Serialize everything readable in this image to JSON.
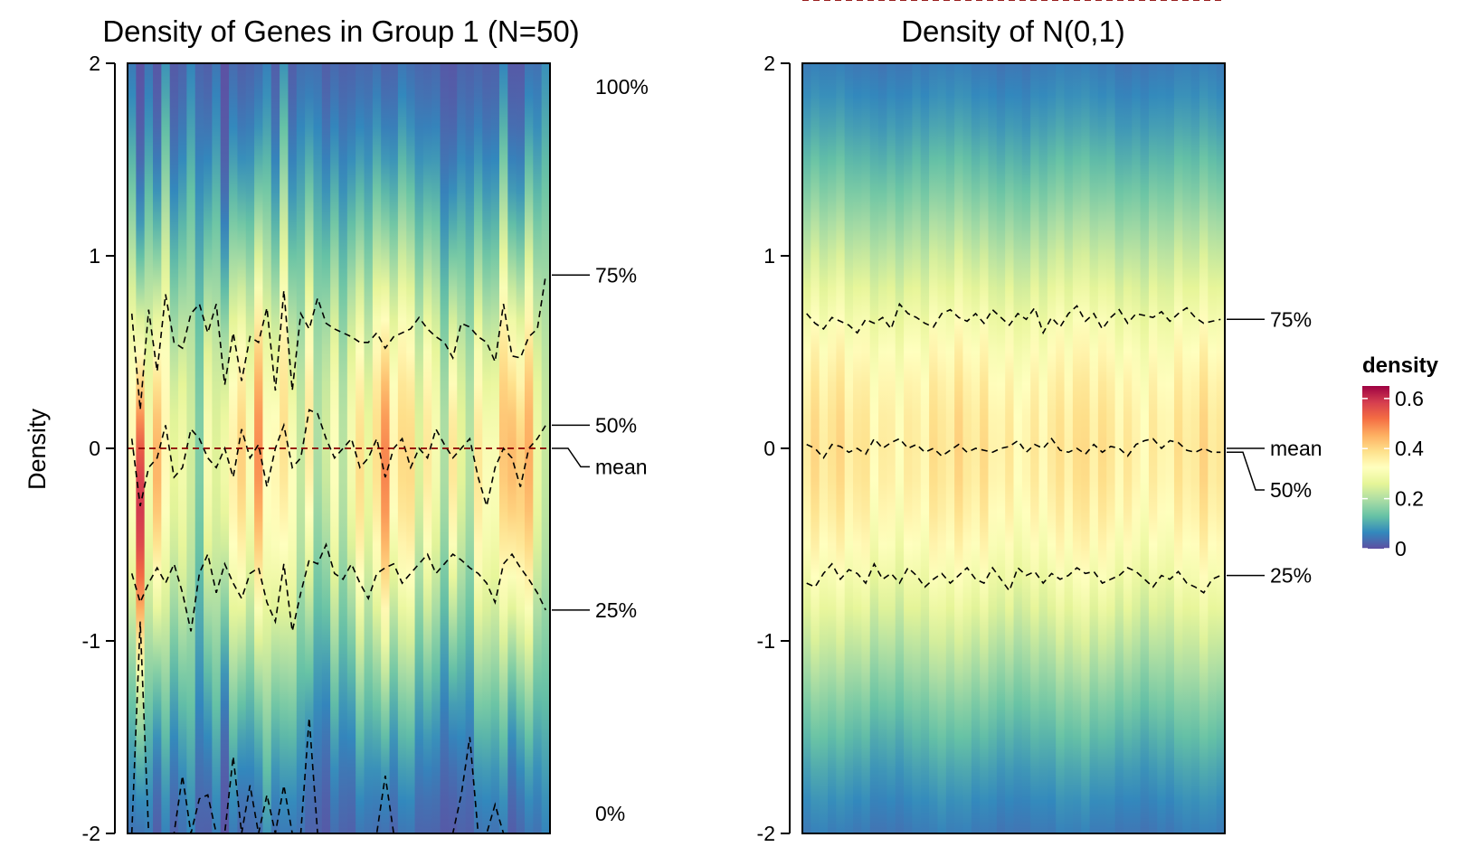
{
  "colors": {
    "palette": [
      "#5e4fa2",
      "#3288bd",
      "#66c2a5",
      "#abdda4",
      "#e6f598",
      "#ffffbf",
      "#fee08b",
      "#fdae61",
      "#f46d43",
      "#d53e4f",
      "#9e0142"
    ],
    "mean_line": "#8b0000",
    "quantile_line": "#000000"
  },
  "chart_data": [
    {
      "type": "heatmap",
      "title": "Density of Genes in Group 1 (N=50)",
      "ylabel": "Density",
      "ylim": [
        -2,
        2
      ],
      "yticks": [
        2,
        1,
        0,
        -1,
        -2
      ],
      "n_columns": 50,
      "annotations": [
        {
          "label": "100%",
          "value": 2.0
        },
        {
          "label": "75%",
          "value": 0.9
        },
        {
          "label": "50%",
          "value": 0.12
        },
        {
          "label": "mean",
          "value": 0.0
        },
        {
          "label": "25%",
          "value": -0.84
        },
        {
          "label": "0%",
          "value": -2.0
        }
      ],
      "quantiles": {
        "q75": [
          0.7,
          0.2,
          0.72,
          0.4,
          0.8,
          0.55,
          0.52,
          0.7,
          0.75,
          0.6,
          0.75,
          0.33,
          0.6,
          0.35,
          0.58,
          0.55,
          0.73,
          0.3,
          0.82,
          0.3,
          0.7,
          0.62,
          0.78,
          0.65,
          0.62,
          0.6,
          0.58,
          0.55,
          0.55,
          0.6,
          0.52,
          0.58,
          0.6,
          0.62,
          0.68,
          0.62,
          0.58,
          0.55,
          0.47,
          0.65,
          0.63,
          0.58,
          0.55,
          0.45,
          0.75,
          0.48,
          0.47,
          0.58,
          0.62,
          0.9
        ],
        "q50": [
          0.05,
          -0.3,
          -0.1,
          -0.05,
          0.12,
          -0.15,
          -0.1,
          0.1,
          0.05,
          -0.05,
          -0.1,
          0.0,
          -0.15,
          0.1,
          -0.05,
          0.02,
          -0.2,
          0.0,
          0.12,
          -0.1,
          -0.05,
          0.2,
          0.18,
          0.05,
          -0.05,
          0.0,
          0.05,
          -0.1,
          -0.05,
          0.05,
          -0.15,
          0.0,
          0.05,
          -0.1,
          0.0,
          -0.05,
          0.1,
          0.02,
          -0.05,
          0.0,
          0.05,
          -0.15,
          -0.3,
          -0.1,
          0.0,
          -0.05,
          -0.2,
          0.0,
          0.05,
          0.12
        ],
        "q25": [
          -0.65,
          -0.8,
          -0.7,
          -0.62,
          -0.7,
          -0.6,
          -0.75,
          -0.95,
          -0.65,
          -0.55,
          -0.75,
          -0.6,
          -0.7,
          -0.78,
          -0.65,
          -0.62,
          -0.8,
          -0.9,
          -0.6,
          -0.95,
          -0.75,
          -0.58,
          -0.6,
          -0.5,
          -0.65,
          -0.68,
          -0.6,
          -0.7,
          -0.78,
          -0.65,
          -0.62,
          -0.6,
          -0.7,
          -0.65,
          -0.6,
          -0.55,
          -0.65,
          -0.6,
          -0.55,
          -0.58,
          -0.62,
          -0.65,
          -0.7,
          -0.8,
          -0.6,
          -0.55,
          -0.62,
          -0.68,
          -0.75,
          -0.84
        ],
        "q0": [
          -2.0,
          -0.9,
          -2.0,
          -2.0,
          -2.0,
          -2.0,
          -1.7,
          -2.0,
          -1.82,
          -1.8,
          -2.0,
          -2.0,
          -1.6,
          -2.0,
          -1.75,
          -2.0,
          -1.8,
          -2.0,
          -1.75,
          -2.0,
          -2.0,
          -1.4,
          -2.0,
          -2.0,
          -2.0,
          -2.0,
          -2.0,
          -2.0,
          -2.0,
          -2.0,
          -1.7,
          -2.0,
          -2.0,
          -2.0,
          -2.0,
          -2.0,
          -2.0,
          -2.0,
          -2.0,
          -1.8,
          -1.5,
          -2.0,
          -2.0,
          -1.85,
          -2.0,
          -2.0,
          -2.0,
          -2.0,
          -2.0,
          -2.0
        ],
        "q100": [
          2.0,
          2.0,
          2.0,
          2.0,
          2.0,
          2.0,
          2.0,
          2.0,
          2.0,
          2.0,
          2.0,
          2.0,
          2.0,
          2.0,
          2.0,
          2.0,
          2.0,
          2.0,
          2.0,
          2.0,
          2.0,
          2.0,
          2.0,
          2.0,
          2.0,
          2.0,
          2.0,
          2.0,
          2.0,
          2.0,
          2.0,
          2.0,
          2.0,
          2.0,
          2.0,
          2.0,
          2.0,
          2.0,
          2.0,
          2.0,
          2.0,
          2.0,
          2.0,
          2.0,
          2.0,
          2.0,
          2.0,
          2.0,
          2.0,
          2.0
        ],
        "mean": 0.0
      }
    },
    {
      "type": "heatmap",
      "title": "Density of N(0,1)",
      "ylim": [
        -2,
        2
      ],
      "yticks": [
        2,
        1,
        0,
        -1,
        -2
      ],
      "n_columns": 50,
      "annotations": [
        {
          "label": "75%",
          "value": 0.67
        },
        {
          "label": "mean",
          "value": 0.0
        },
        {
          "label": "50%",
          "value": -0.02
        },
        {
          "label": "25%",
          "value": -0.66
        }
      ],
      "quantiles": {
        "q75": [
          0.7,
          0.65,
          0.62,
          0.68,
          0.66,
          0.64,
          0.6,
          0.67,
          0.65,
          0.68,
          0.62,
          0.75,
          0.7,
          0.68,
          0.65,
          0.63,
          0.7,
          0.72,
          0.68,
          0.66,
          0.7,
          0.65,
          0.72,
          0.68,
          0.64,
          0.7,
          0.67,
          0.73,
          0.6,
          0.68,
          0.63,
          0.7,
          0.74,
          0.66,
          0.7,
          0.62,
          0.68,
          0.72,
          0.65,
          0.7,
          0.69,
          0.68,
          0.71,
          0.66,
          0.7,
          0.73,
          0.68,
          0.65,
          0.66,
          0.67
        ],
        "q50": [
          0.02,
          0.0,
          -0.05,
          0.02,
          0.01,
          -0.02,
          0.0,
          -0.03,
          0.05,
          0.0,
          0.03,
          0.05,
          0.0,
          0.02,
          -0.02,
          0.0,
          -0.04,
          -0.01,
          0.02,
          -0.02,
          0.0,
          -0.01,
          -0.02,
          0.0,
          0.01,
          0.04,
          -0.02,
          0.02,
          0.0,
          0.05,
          -0.01,
          -0.02,
          0.0,
          -0.03,
          0.02,
          -0.02,
          0.01,
          0.0,
          -0.04,
          0.02,
          0.04,
          0.05,
          0.0,
          0.04,
          0.03,
          -0.01,
          -0.02,
          0.0,
          -0.02,
          -0.02
        ],
        "q25": [
          -0.7,
          -0.72,
          -0.65,
          -0.6,
          -0.68,
          -0.63,
          -0.65,
          -0.7,
          -0.6,
          -0.68,
          -0.65,
          -0.7,
          -0.62,
          -0.66,
          -0.72,
          -0.68,
          -0.65,
          -0.7,
          -0.66,
          -0.62,
          -0.68,
          -0.7,
          -0.62,
          -0.68,
          -0.74,
          -0.62,
          -0.66,
          -0.64,
          -0.7,
          -0.65,
          -0.68,
          -0.66,
          -0.62,
          -0.65,
          -0.64,
          -0.7,
          -0.68,
          -0.66,
          -0.62,
          -0.64,
          -0.68,
          -0.72,
          -0.66,
          -0.68,
          -0.64,
          -0.7,
          -0.72,
          -0.75,
          -0.68,
          -0.66
        ]
      },
      "legend": {
        "title": "density",
        "ticks": [
          "0.6",
          "0.4",
          "0.2",
          "0"
        ],
        "tick_values": [
          0.6,
          0.4,
          0.2,
          0.0
        ],
        "range": [
          0,
          0.65
        ],
        "position": "right"
      }
    }
  ]
}
